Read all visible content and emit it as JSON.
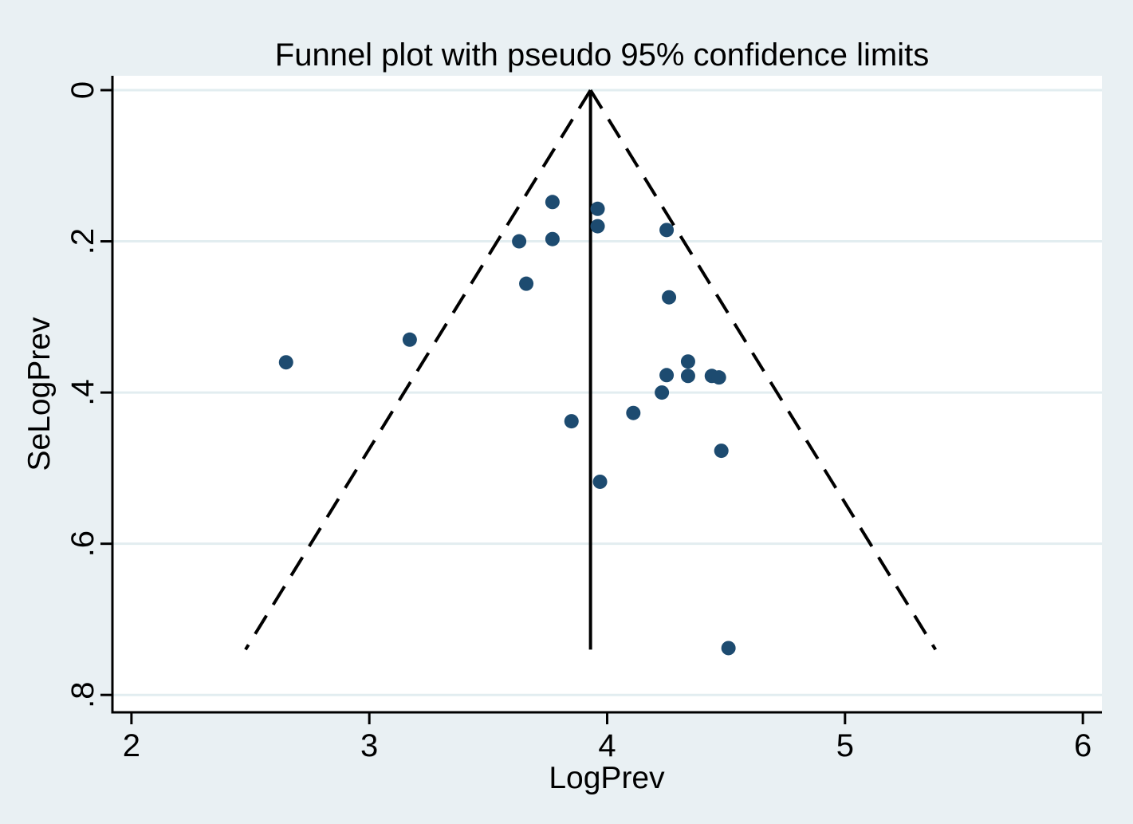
{
  "figure": {
    "title": "Funnel plot with pseudo 95% confidence limits"
  },
  "colors": {
    "background": "#e9f0f3",
    "plot_background": "#ffffff",
    "gridline": "#e2edf0",
    "axis": "#000000",
    "funnel_line": "#000000",
    "estimate_line": "#000000",
    "marker": "#1d4b70"
  },
  "chart_data": {
    "type": "scatter",
    "title": "Funnel plot with pseudo 95% confidence limits",
    "xlabel": "LogPrev",
    "ylabel": "SeLogPrev",
    "legend": "none",
    "grid": "horizontal",
    "y_axis_reversed": true,
    "xlim": [
      1.92,
      6.08
    ],
    "ylim": [
      -0.019,
      0.823
    ],
    "x_ticks": [
      {
        "value": 2,
        "label": "2"
      },
      {
        "value": 3,
        "label": "3"
      },
      {
        "value": 4,
        "label": "4"
      },
      {
        "value": 5,
        "label": "5"
      },
      {
        "value": 6,
        "label": "6"
      }
    ],
    "y_ticks": [
      {
        "value": 0.0,
        "label": "0"
      },
      {
        "value": 0.2,
        "label": ".2"
      },
      {
        "value": 0.4,
        "label": ".4"
      },
      {
        "value": 0.6,
        "label": ".6"
      },
      {
        "value": 0.8,
        "label": ".8"
      }
    ],
    "funnel": {
      "estimate": 3.93,
      "se_max": 0.74,
      "z": 1.96,
      "description": "pseudo 95% confidence limits"
    },
    "points": [
      {
        "x": 2.65,
        "se": 0.36
      },
      {
        "x": 3.17,
        "se": 0.33
      },
      {
        "x": 3.63,
        "se": 0.2
      },
      {
        "x": 3.66,
        "se": 0.256
      },
      {
        "x": 3.77,
        "se": 0.148
      },
      {
        "x": 3.77,
        "se": 0.197
      },
      {
        "x": 3.85,
        "se": 0.438
      },
      {
        "x": 3.96,
        "se": 0.157
      },
      {
        "x": 3.96,
        "se": 0.18
      },
      {
        "x": 3.97,
        "se": 0.518
      },
      {
        "x": 4.11,
        "se": 0.427
      },
      {
        "x": 4.23,
        "se": 0.4
      },
      {
        "x": 4.25,
        "se": 0.185
      },
      {
        "x": 4.25,
        "se": 0.377
      },
      {
        "x": 4.26,
        "se": 0.274
      },
      {
        "x": 4.34,
        "se": 0.359
      },
      {
        "x": 4.34,
        "se": 0.378
      },
      {
        "x": 4.44,
        "se": 0.378
      },
      {
        "x": 4.47,
        "se": 0.38
      },
      {
        "x": 4.48,
        "se": 0.477
      },
      {
        "x": 4.51,
        "se": 0.738
      }
    ]
  }
}
